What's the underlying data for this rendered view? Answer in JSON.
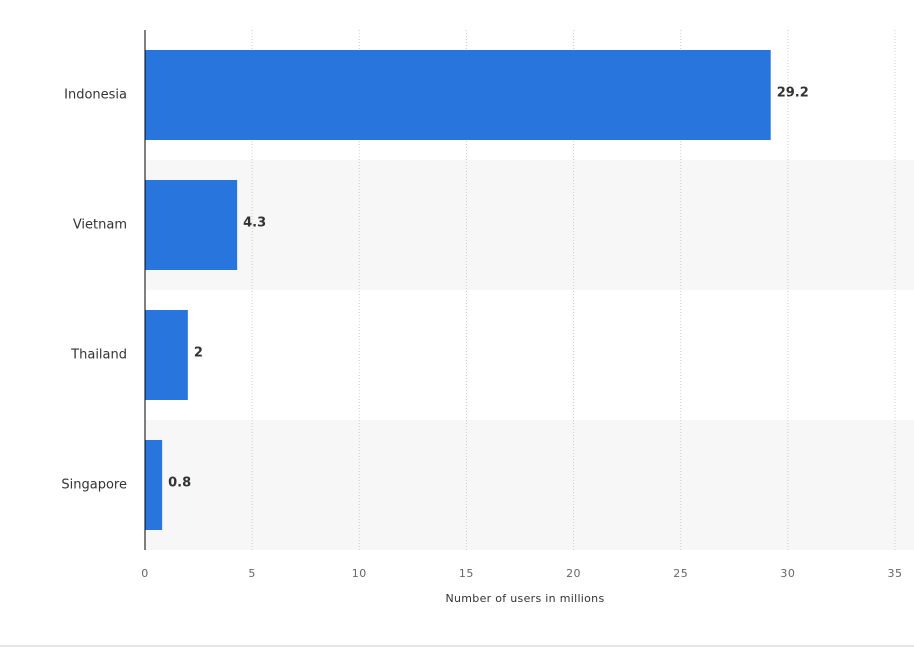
{
  "chart_data": {
    "type": "bar",
    "orientation": "horizontal",
    "categories": [
      "Indonesia",
      "Vietnam",
      "Thailand",
      "Singapore"
    ],
    "values": [
      29.2,
      4.3,
      2,
      0.8
    ],
    "value_labels": [
      "29.2",
      "4.3",
      "2",
      "0.8"
    ],
    "xlabel": "Number of users in millions",
    "ylabel": "",
    "xlim": [
      0,
      35
    ],
    "ticks": [
      0,
      5,
      10,
      15,
      20,
      25,
      30,
      35
    ],
    "grid": true,
    "grid_style": "dotted vertical",
    "alternating_row_shading": true,
    "legend": "none",
    "colors": {
      "bar": "#2876dd",
      "row_shade": "#f7f7f7",
      "grid": "#cccccc",
      "axis": "#000000"
    }
  }
}
